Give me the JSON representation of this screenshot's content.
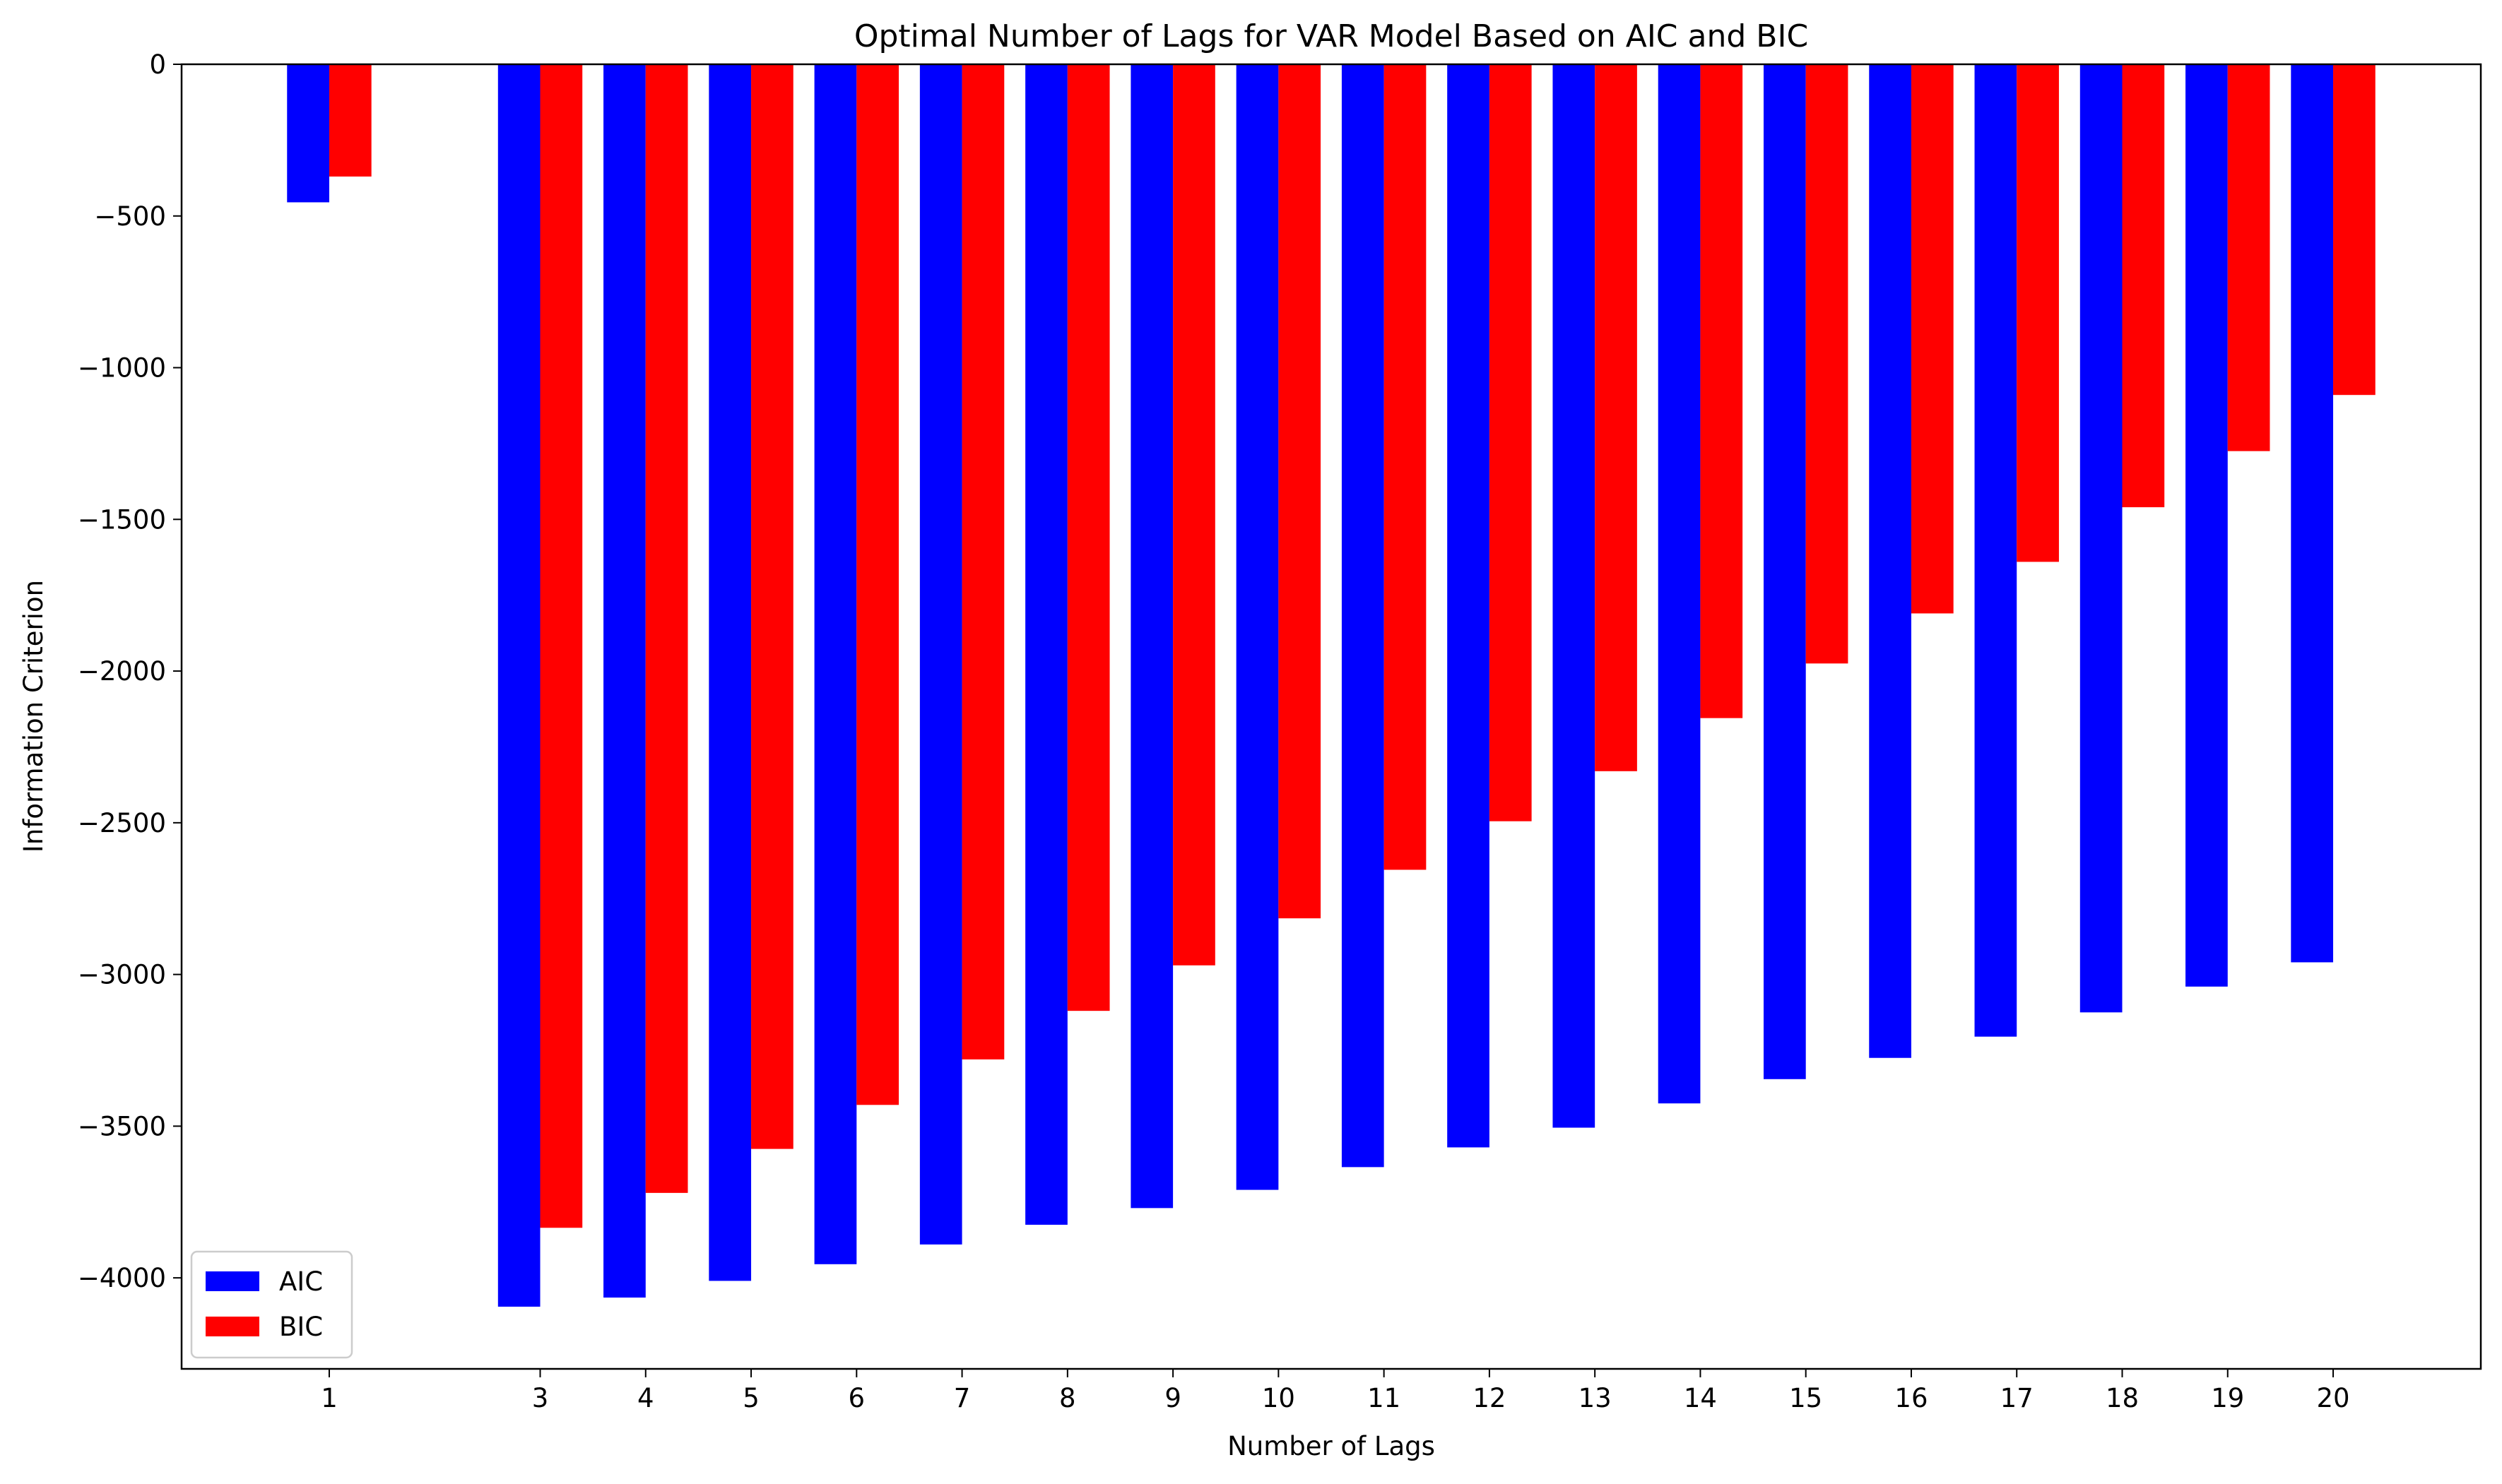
{
  "chart_data": {
    "type": "bar",
    "title": "Optimal Number of Lags for VAR Model Based on AIC and BIC",
    "xlabel": "Number of Lags",
    "ylabel": "Information Criterion",
    "x": [
      1,
      3,
      4,
      5,
      6,
      7,
      8,
      9,
      10,
      11,
      12,
      13,
      14,
      15,
      16,
      17,
      18,
      19,
      20
    ],
    "xlim": [
      -0.4,
      21.4
    ],
    "ylim": [
      -4300,
      0
    ],
    "yticks": [
      0,
      -500,
      -1000,
      -1500,
      -2000,
      -2500,
      -3000,
      -3500,
      -4000
    ],
    "grid": false,
    "legend_position": "lower-left",
    "series": [
      {
        "name": "AIC",
        "color": "#0000ff",
        "values": [
          -455,
          -4095,
          -4065,
          -4010,
          -3955,
          -3890,
          -3825,
          -3770,
          -3710,
          -3635,
          -3570,
          -3505,
          -3425,
          -3345,
          -3275,
          -3205,
          -3125,
          -3040,
          -2960
        ]
      },
      {
        "name": "BIC",
        "color": "#ff0000",
        "values": [
          -370,
          -3835,
          -3720,
          -3575,
          -3430,
          -3280,
          -3120,
          -2970,
          -2815,
          -2655,
          -2495,
          -2330,
          -2155,
          -1975,
          -1810,
          -1640,
          -1460,
          -1275,
          -1090
        ]
      }
    ]
  }
}
